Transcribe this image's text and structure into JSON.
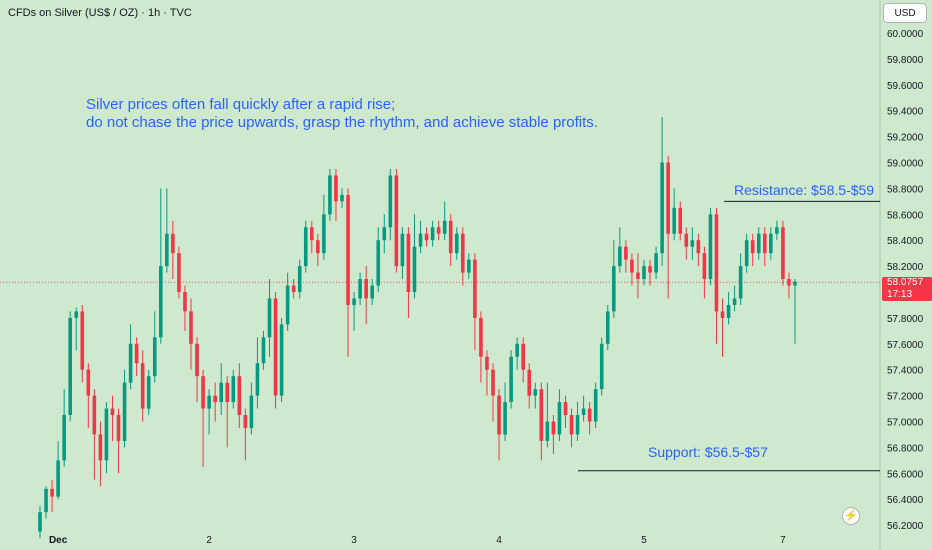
{
  "header": {
    "title": "CFDs on Silver (US$ / OZ) · 1h · TVC"
  },
  "currency_button": {
    "label": "USD"
  },
  "price_tag": {
    "price": "58.0757",
    "countdown": "17:13"
  },
  "annotation": {
    "line1": "Silver prices often fall quickly after a rapid rise;",
    "line2": "do not chase the price upwards, grasp the rhythm, and achieve stable profits."
  },
  "levels": {
    "resistance": {
      "label": "Resistance: $58.5-$59",
      "price": 58.7
    },
    "support": {
      "label": "Support: $56.5-$57",
      "price": 56.62
    }
  },
  "badge": {
    "icon": "lightning-icon",
    "glyph": "⚡"
  },
  "colors": {
    "background": "#cfe9cf",
    "up": "#089981",
    "down": "#f23645",
    "annotation": "#2962ff",
    "axis_text": "#131722"
  },
  "chart_data": {
    "type": "candlestick",
    "title": "CFDs on Silver (US$ / OZ) · 1h · TVC",
    "ylim": [
      56.2,
      60.1
    ],
    "y_ticks": [
      "60.0000",
      "59.8000",
      "59.6000",
      "59.4000",
      "59.2000",
      "59.0000",
      "58.8000",
      "58.6000",
      "58.4000",
      "58.2000",
      "58.0000",
      "57.8000",
      "57.6000",
      "57.4000",
      "57.2000",
      "57.0000",
      "56.8000",
      "56.6000",
      "56.4000",
      "56.2000"
    ],
    "x_ticks": [
      {
        "label": "Dec",
        "bar": 3
      },
      {
        "label": "2",
        "bar": 28
      },
      {
        "label": "3",
        "bar": 52
      },
      {
        "label": "4",
        "bar": 76
      },
      {
        "label": "5",
        "bar": 100
      },
      {
        "label": "7",
        "bar": 123
      }
    ],
    "current_price": 58.0757,
    "candles": [
      [
        56.15,
        56.3,
        56.1,
        56.35
      ],
      [
        56.3,
        56.48,
        56.25,
        56.5
      ],
      [
        56.48,
        56.42,
        56.3,
        56.55
      ],
      [
        56.42,
        56.7,
        56.4,
        56.85
      ],
      [
        56.7,
        57.05,
        56.65,
        57.25
      ],
      [
        57.05,
        57.8,
        57.0,
        57.85
      ],
      [
        57.8,
        57.85,
        57.55,
        57.88
      ],
      [
        57.85,
        57.4,
        57.3,
        57.9
      ],
      [
        57.4,
        57.2,
        56.95,
        57.45
      ],
      [
        57.2,
        56.9,
        56.55,
        57.25
      ],
      [
        56.9,
        56.7,
        56.5,
        57.0
      ],
      [
        56.7,
        57.1,
        56.6,
        57.15
      ],
      [
        57.1,
        57.05,
        56.85,
        57.2
      ],
      [
        57.05,
        56.85,
        56.6,
        57.1
      ],
      [
        56.85,
        57.3,
        56.8,
        57.4
      ],
      [
        57.3,
        57.6,
        57.25,
        57.75
      ],
      [
        57.6,
        57.45,
        57.35,
        57.65
      ],
      [
        57.45,
        57.1,
        57.0,
        57.55
      ],
      [
        57.1,
        57.35,
        57.05,
        57.4
      ],
      [
        57.35,
        57.65,
        57.3,
        57.85
      ],
      [
        57.65,
        58.2,
        57.6,
        58.8
      ],
      [
        58.2,
        58.45,
        58.15,
        58.8
      ],
      [
        58.45,
        58.3,
        58.1,
        58.55
      ],
      [
        58.3,
        58.0,
        57.95,
        58.35
      ],
      [
        58.0,
        57.85,
        57.7,
        58.05
      ],
      [
        57.85,
        57.6,
        57.4,
        57.95
      ],
      [
        57.6,
        57.35,
        57.15,
        57.65
      ],
      [
        57.35,
        57.1,
        56.65,
        57.4
      ],
      [
        57.1,
        57.2,
        56.9,
        57.25
      ],
      [
        57.2,
        57.15,
        57.0,
        57.3
      ],
      [
        57.15,
        57.3,
        57.05,
        57.45
      ],
      [
        57.3,
        57.15,
        56.8,
        57.35
      ],
      [
        57.15,
        57.35,
        57.1,
        57.4
      ],
      [
        57.35,
        57.05,
        56.95,
        57.45
      ],
      [
        57.05,
        56.95,
        56.7,
        57.1
      ],
      [
        56.95,
        57.2,
        56.9,
        57.3
      ],
      [
        57.2,
        57.45,
        57.1,
        57.65
      ],
      [
        57.45,
        57.65,
        57.4,
        57.7
      ],
      [
        57.65,
        57.95,
        57.5,
        58.1
      ],
      [
        57.95,
        57.2,
        57.1,
        58.0
      ],
      [
        57.2,
        57.75,
        57.15,
        57.8
      ],
      [
        57.75,
        58.05,
        57.7,
        58.15
      ],
      [
        58.05,
        58.0,
        57.95,
        58.1
      ],
      [
        58.0,
        58.2,
        57.95,
        58.25
      ],
      [
        58.2,
        58.5,
        58.15,
        58.55
      ],
      [
        58.5,
        58.4,
        58.3,
        58.55
      ],
      [
        58.4,
        58.3,
        58.2,
        58.45
      ],
      [
        58.3,
        58.6,
        58.25,
        58.75
      ],
      [
        58.6,
        58.9,
        58.55,
        58.95
      ],
      [
        58.9,
        58.7,
        58.55,
        58.95
      ],
      [
        58.7,
        58.75,
        58.65,
        58.8
      ],
      [
        58.75,
        57.9,
        57.5,
        58.8
      ],
      [
        57.9,
        57.95,
        57.7,
        58.0
      ],
      [
        57.95,
        58.1,
        57.9,
        58.15
      ],
      [
        58.1,
        57.95,
        57.75,
        58.2
      ],
      [
        57.95,
        58.05,
        57.9,
        58.1
      ],
      [
        58.05,
        58.4,
        58.0,
        58.5
      ],
      [
        58.4,
        58.5,
        58.3,
        58.6
      ],
      [
        58.5,
        58.9,
        58.4,
        58.95
      ],
      [
        58.9,
        58.2,
        58.15,
        58.95
      ],
      [
        58.2,
        58.45,
        58.1,
        58.5
      ],
      [
        58.45,
        58.0,
        57.8,
        58.5
      ],
      [
        58.0,
        58.35,
        57.95,
        58.6
      ],
      [
        58.35,
        58.45,
        58.3,
        58.55
      ],
      [
        58.45,
        58.4,
        58.35,
        58.5
      ],
      [
        58.4,
        58.5,
        58.35,
        58.55
      ],
      [
        58.5,
        58.45,
        58.4,
        58.55
      ],
      [
        58.45,
        58.55,
        58.4,
        58.7
      ],
      [
        58.55,
        58.3,
        58.2,
        58.6
      ],
      [
        58.3,
        58.45,
        58.25,
        58.5
      ],
      [
        58.45,
        58.15,
        58.05,
        58.5
      ],
      [
        58.15,
        58.25,
        58.1,
        58.3
      ],
      [
        58.25,
        57.8,
        57.55,
        58.3
      ],
      [
        57.8,
        57.5,
        57.3,
        57.85
      ],
      [
        57.5,
        57.4,
        57.2,
        57.55
      ],
      [
        57.4,
        57.2,
        57.0,
        57.45
      ],
      [
        57.2,
        56.9,
        56.7,
        57.25
      ],
      [
        56.9,
        57.15,
        56.85,
        57.3
      ],
      [
        57.15,
        57.5,
        57.1,
        57.55
      ],
      [
        57.5,
        57.6,
        57.4,
        57.65
      ],
      [
        57.6,
        57.4,
        57.3,
        57.65
      ],
      [
        57.4,
        57.2,
        57.1,
        57.45
      ],
      [
        57.2,
        57.25,
        57.1,
        57.3
      ],
      [
        57.25,
        56.85,
        56.7,
        57.3
      ],
      [
        56.85,
        57.0,
        56.8,
        57.3
      ],
      [
        57.0,
        56.9,
        56.75,
        57.05
      ],
      [
        56.9,
        57.15,
        56.85,
        57.25
      ],
      [
        57.15,
        57.05,
        56.95,
        57.2
      ],
      [
        57.05,
        56.9,
        56.8,
        57.1
      ],
      [
        56.9,
        57.05,
        56.85,
        57.15
      ],
      [
        57.05,
        57.1,
        57.0,
        57.2
      ],
      [
        57.1,
        57.0,
        56.9,
        57.15
      ],
      [
        57.0,
        57.25,
        56.95,
        57.3
      ],
      [
        57.25,
        57.6,
        57.2,
        57.65
      ],
      [
        57.6,
        57.85,
        57.55,
        57.9
      ],
      [
        57.85,
        58.2,
        57.8,
        58.4
      ],
      [
        58.2,
        58.35,
        58.15,
        58.5
      ],
      [
        58.35,
        58.25,
        58.15,
        58.4
      ],
      [
        58.25,
        58.15,
        58.05,
        58.3
      ],
      [
        58.15,
        58.1,
        57.95,
        58.3
      ],
      [
        58.1,
        58.2,
        58.05,
        58.25
      ],
      [
        58.2,
        58.15,
        58.05,
        58.25
      ],
      [
        58.15,
        58.3,
        58.1,
        58.35
      ],
      [
        58.3,
        59.0,
        58.2,
        59.35
      ],
      [
        59.0,
        58.45,
        57.95,
        59.05
      ],
      [
        58.45,
        58.65,
        58.4,
        58.8
      ],
      [
        58.65,
        58.45,
        58.4,
        58.7
      ],
      [
        58.45,
        58.35,
        58.25,
        58.5
      ],
      [
        58.35,
        58.4,
        58.25,
        58.5
      ],
      [
        58.4,
        58.3,
        58.2,
        58.45
      ],
      [
        58.3,
        58.1,
        57.95,
        58.35
      ],
      [
        58.1,
        58.6,
        58.05,
        58.65
      ],
      [
        58.6,
        57.85,
        57.6,
        58.65
      ],
      [
        57.85,
        57.8,
        57.5,
        57.95
      ],
      [
        57.8,
        57.9,
        57.75,
        58.0
      ],
      [
        57.9,
        57.95,
        57.85,
        58.05
      ],
      [
        57.95,
        58.2,
        57.9,
        58.3
      ],
      [
        58.2,
        58.4,
        58.15,
        58.45
      ],
      [
        58.4,
        58.3,
        58.2,
        58.45
      ],
      [
        58.3,
        58.45,
        58.25,
        58.5
      ],
      [
        58.45,
        58.3,
        58.2,
        58.5
      ],
      [
        58.3,
        58.45,
        58.25,
        58.5
      ],
      [
        58.45,
        58.5,
        58.4,
        58.55
      ],
      [
        58.5,
        58.1,
        58.05,
        58.55
      ],
      [
        58.1,
        58.05,
        57.95,
        58.15
      ],
      [
        58.05,
        58.08,
        57.6,
        58.1
      ]
    ]
  }
}
